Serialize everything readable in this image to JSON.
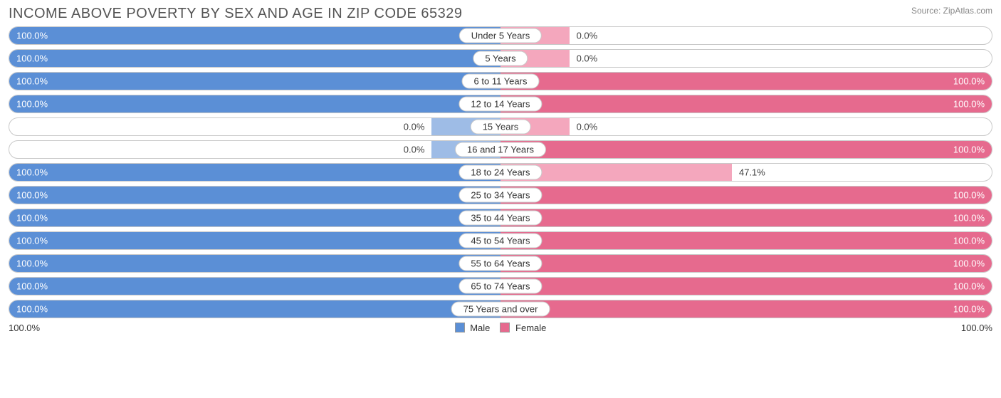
{
  "title": "INCOME ABOVE POVERTY BY SEX AND AGE IN ZIP CODE 65329",
  "source": "Source: ZipAtlas.com",
  "colors": {
    "male_fill": "#5b8fd6",
    "male_fill_light": "#9ebce6",
    "female_fill": "#e66a8e",
    "female_fill_light": "#f4a7bd",
    "border": "#c9c9c9",
    "text": "#404040",
    "title_text": "#555555"
  },
  "legend": {
    "male": "Male",
    "female": "Female"
  },
  "axis": {
    "left_label": "100.0%",
    "right_label": "100.0%"
  },
  "stub_pct": 14,
  "rows": [
    {
      "category": "Under 5 Years",
      "male_pct": 100.0,
      "male_label": "100.0%",
      "male_light": false,
      "female_pct": 0.0,
      "female_label": "0.0%",
      "female_light": true
    },
    {
      "category": "5 Years",
      "male_pct": 100.0,
      "male_label": "100.0%",
      "male_light": false,
      "female_pct": 0.0,
      "female_label": "0.0%",
      "female_light": true
    },
    {
      "category": "6 to 11 Years",
      "male_pct": 100.0,
      "male_label": "100.0%",
      "male_light": false,
      "female_pct": 100.0,
      "female_label": "100.0%",
      "female_light": false
    },
    {
      "category": "12 to 14 Years",
      "male_pct": 100.0,
      "male_label": "100.0%",
      "male_light": false,
      "female_pct": 100.0,
      "female_label": "100.0%",
      "female_light": false
    },
    {
      "category": "15 Years",
      "male_pct": 0.0,
      "male_label": "0.0%",
      "male_light": true,
      "female_pct": 0.0,
      "female_label": "0.0%",
      "female_light": true
    },
    {
      "category": "16 and 17 Years",
      "male_pct": 0.0,
      "male_label": "0.0%",
      "male_light": true,
      "female_pct": 100.0,
      "female_label": "100.0%",
      "female_light": false
    },
    {
      "category": "18 to 24 Years",
      "male_pct": 100.0,
      "male_label": "100.0%",
      "male_light": false,
      "female_pct": 47.1,
      "female_label": "47.1%",
      "female_light": true
    },
    {
      "category": "25 to 34 Years",
      "male_pct": 100.0,
      "male_label": "100.0%",
      "male_light": false,
      "female_pct": 100.0,
      "female_label": "100.0%",
      "female_light": false
    },
    {
      "category": "35 to 44 Years",
      "male_pct": 100.0,
      "male_label": "100.0%",
      "male_light": false,
      "female_pct": 100.0,
      "female_label": "100.0%",
      "female_light": false
    },
    {
      "category": "45 to 54 Years",
      "male_pct": 100.0,
      "male_label": "100.0%",
      "male_light": false,
      "female_pct": 100.0,
      "female_label": "100.0%",
      "female_light": false
    },
    {
      "category": "55 to 64 Years",
      "male_pct": 100.0,
      "male_label": "100.0%",
      "male_light": false,
      "female_pct": 100.0,
      "female_label": "100.0%",
      "female_light": false
    },
    {
      "category": "65 to 74 Years",
      "male_pct": 100.0,
      "male_label": "100.0%",
      "male_light": false,
      "female_pct": 100.0,
      "female_label": "100.0%",
      "female_light": false
    },
    {
      "category": "75 Years and over",
      "male_pct": 100.0,
      "male_label": "100.0%",
      "male_light": false,
      "female_pct": 100.0,
      "female_label": "100.0%",
      "female_light": false
    }
  ]
}
